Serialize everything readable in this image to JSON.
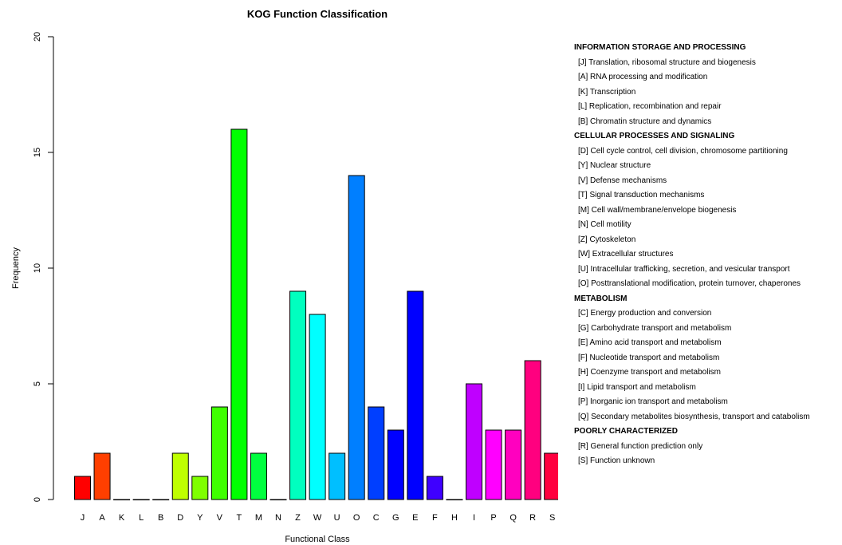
{
  "chart_data": {
    "type": "bar",
    "title": "KOG Function Classification",
    "xlabel": "Functional Class",
    "ylabel": "Frequency",
    "ylim": [
      0,
      20
    ],
    "yticks": [
      0,
      5,
      10,
      15,
      20
    ],
    "grid": false,
    "legend_position": "right",
    "categories": [
      "J",
      "A",
      "K",
      "L",
      "B",
      "D",
      "Y",
      "V",
      "T",
      "M",
      "N",
      "Z",
      "W",
      "U",
      "O",
      "C",
      "G",
      "E",
      "F",
      "H",
      "I",
      "P",
      "Q",
      "R",
      "S"
    ],
    "values": [
      1,
      2,
      0,
      0,
      0,
      2,
      1,
      4,
      16,
      2,
      0,
      9,
      8,
      2,
      14,
      4,
      3,
      9,
      1,
      0,
      5,
      3,
      3,
      6,
      2
    ],
    "colors": [
      "#FF0000",
      "#FF3F00",
      "#FF7F00",
      "#FFBF00",
      "#FFFF00",
      "#BFFF00",
      "#7FFF00",
      "#3FFF00",
      "#00FF00",
      "#00FF3F",
      "#00FF7F",
      "#00FFBF",
      "#00FFFF",
      "#00BFFF",
      "#007FFF",
      "#003FFF",
      "#0000FF",
      "#0000FF",
      "#3F00FF",
      "#7F00FF",
      "#BF00FF",
      "#FF00FF",
      "#FF00BF",
      "#FF007F",
      "#FF003F"
    ],
    "legend": [
      {
        "group": "INFORMATION STORAGE AND PROCESSING",
        "items": [
          "[J] Translation, ribosomal structure and biogenesis",
          "[A] RNA processing and modification",
          "[K] Transcription",
          "[L] Replication, recombination and repair",
          "[B] Chromatin structure and dynamics"
        ]
      },
      {
        "group": "CELLULAR PROCESSES AND SIGNALING",
        "items": [
          "[D] Cell cycle control, cell division, chromosome partitioning",
          "[Y] Nuclear structure",
          "[V] Defense mechanisms",
          "[T] Signal transduction mechanisms",
          "[M] Cell wall/membrane/envelope biogenesis",
          "[N] Cell motility",
          "[Z] Cytoskeleton",
          "[W] Extracellular structures",
          "[U] Intracellular trafficking, secretion, and vesicular transport",
          "[O] Posttranslational modification, protein turnover, chaperones"
        ]
      },
      {
        "group": "METABOLISM",
        "items": [
          "[C] Energy production and conversion",
          "[G] Carbohydrate transport and metabolism",
          "[E] Amino acid transport and metabolism",
          "[F] Nucleotide transport and metabolism",
          "[H] Coenzyme transport and metabolism",
          "[I] Lipid transport and metabolism",
          "[P] Inorganic ion transport and metabolism",
          "[Q] Secondary metabolites biosynthesis, transport and catabolism"
        ]
      },
      {
        "group": "POORLY CHARACTERIZED",
        "items": [
          "[R] General function prediction only",
          "[S] Function unknown"
        ]
      }
    ]
  }
}
